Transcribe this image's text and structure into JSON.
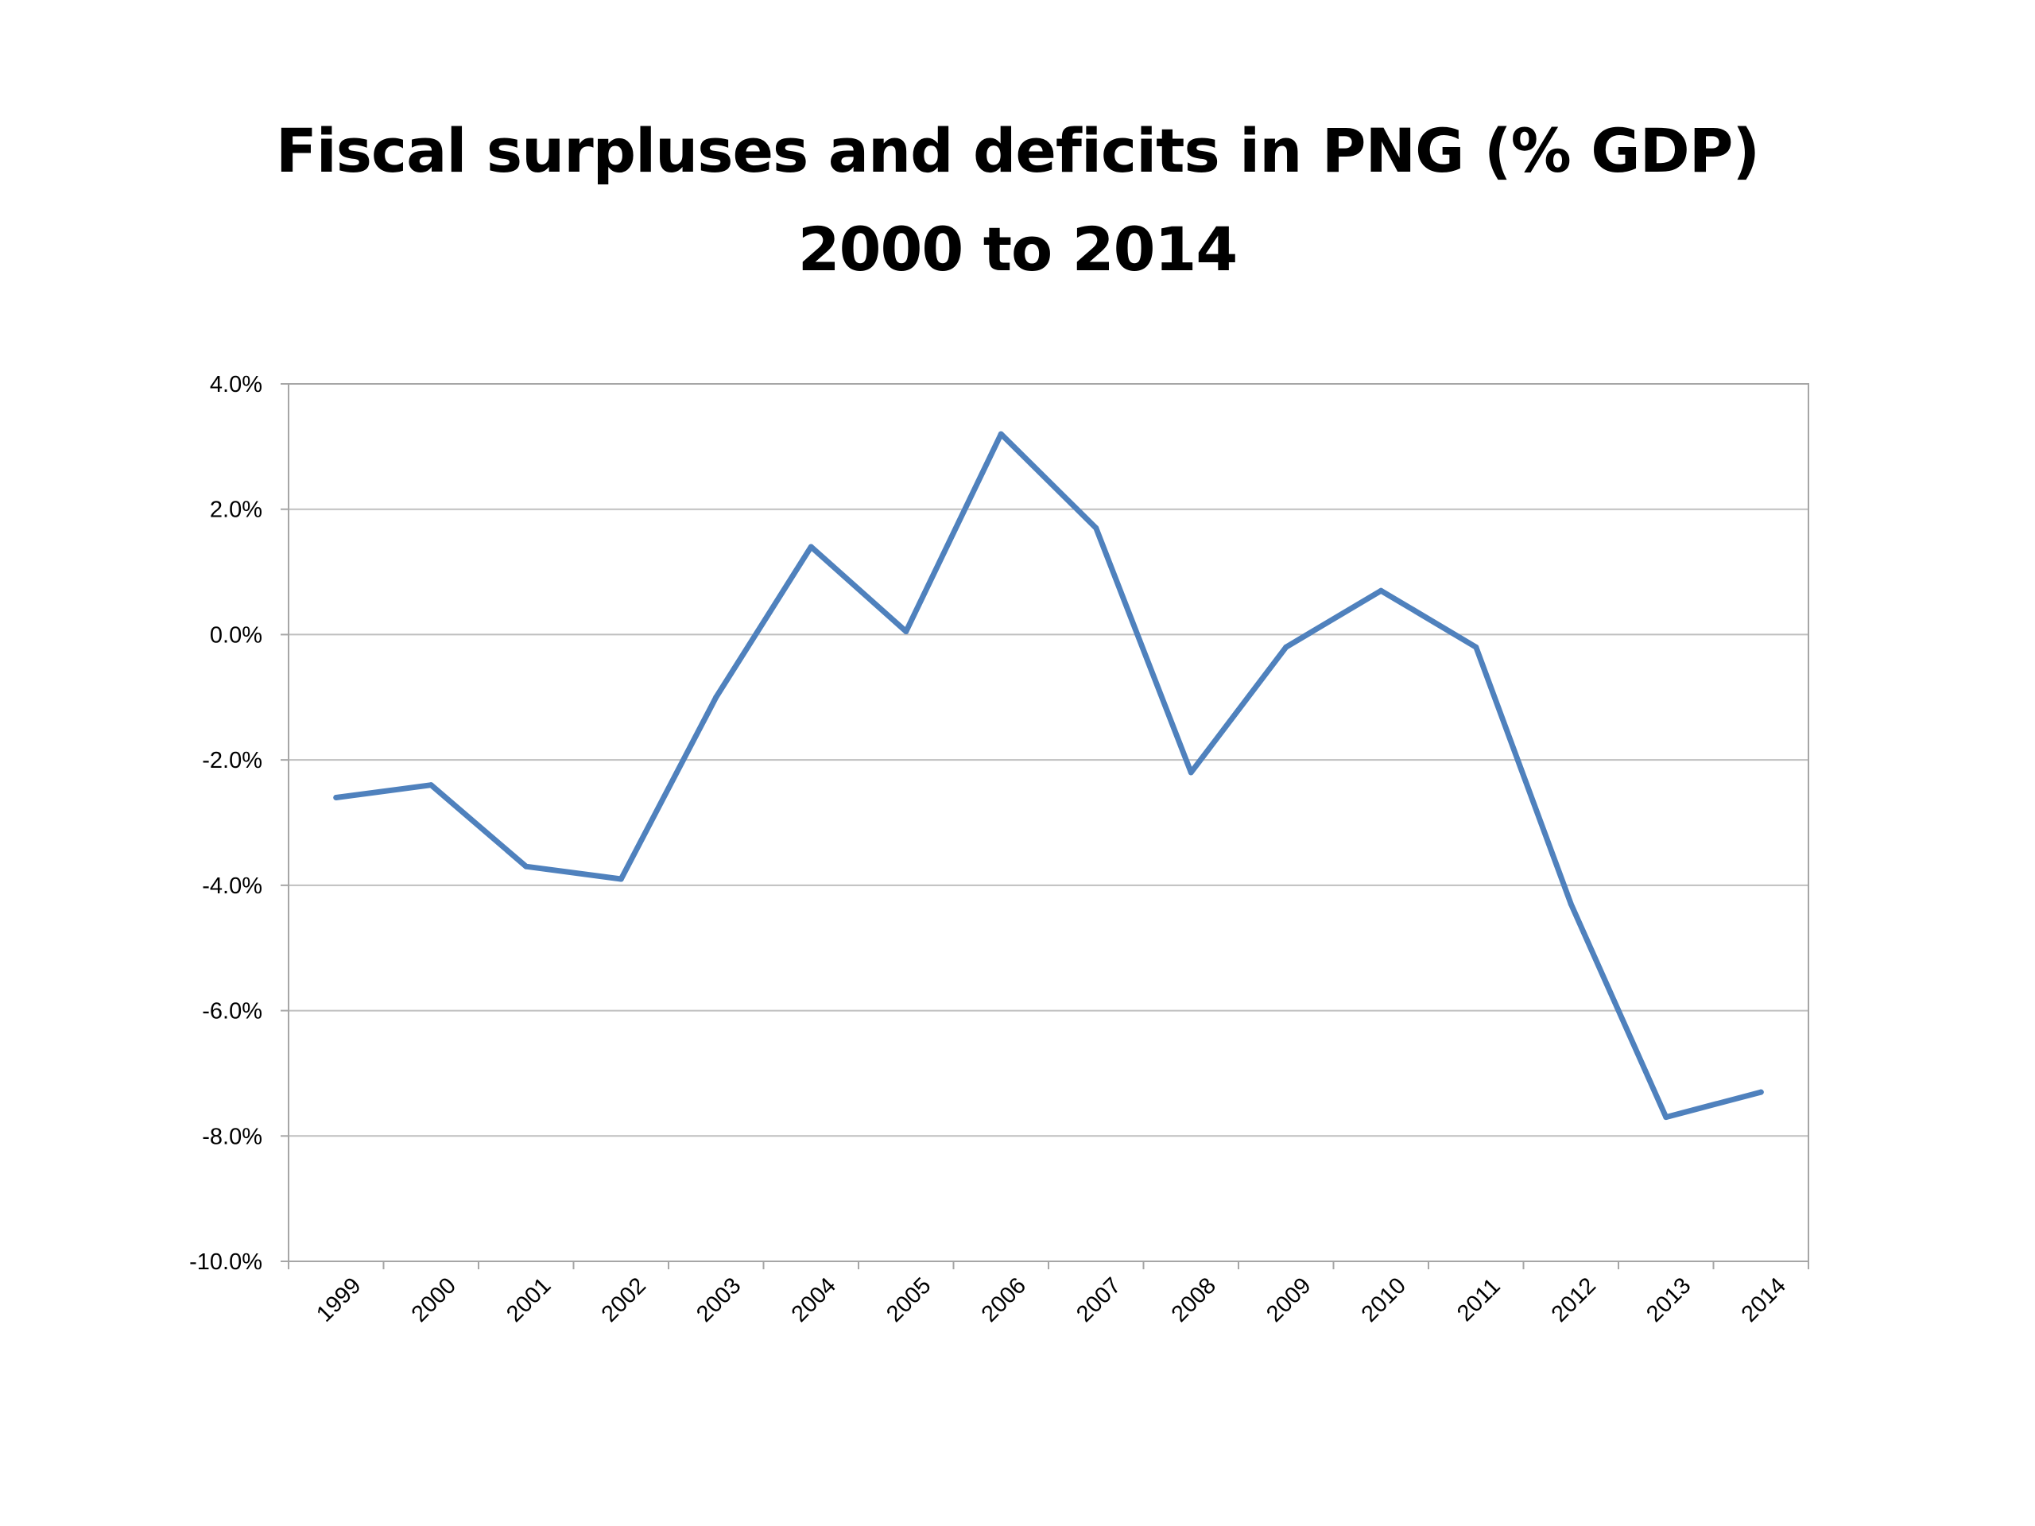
{
  "chart_data": {
    "type": "line",
    "title": "Fiscal surpluses and deficits in PNG (% GDP)",
    "subtitle": "2000 to 2014",
    "xlabel": "",
    "ylabel": "",
    "x": [
      "1999",
      "2000",
      "2001",
      "2002",
      "2003",
      "2004",
      "2005",
      "2006",
      "2007",
      "2008",
      "2009",
      "2010",
      "2011",
      "2012",
      "2013",
      "2014"
    ],
    "series": [
      {
        "color": "#4F81BD",
        "values": [
          -2.6,
          -2.4,
          -3.7,
          -3.9,
          -1.0,
          1.4,
          0.05,
          3.2,
          1.7,
          -2.2,
          -0.2,
          0.7,
          -0.2,
          -4.3,
          -7.7,
          -7.3
        ]
      }
    ],
    "ylim": [
      -10.0,
      4.0
    ],
    "yticks": [
      4.0,
      2.0,
      0.0,
      -2.0,
      -4.0,
      -6.0,
      -8.0,
      -10.0
    ],
    "ytick_labels": [
      "4.0%",
      "2.0%",
      "0.0%",
      "-2.0%",
      "-4.0%",
      "-6.0%",
      "-8.0%",
      "-10.0%"
    ],
    "grid": true,
    "legend": "none",
    "colors": {
      "line": "#4F81BD",
      "grid": "#BFBFBF",
      "frame": "#A6A6A6"
    }
  }
}
